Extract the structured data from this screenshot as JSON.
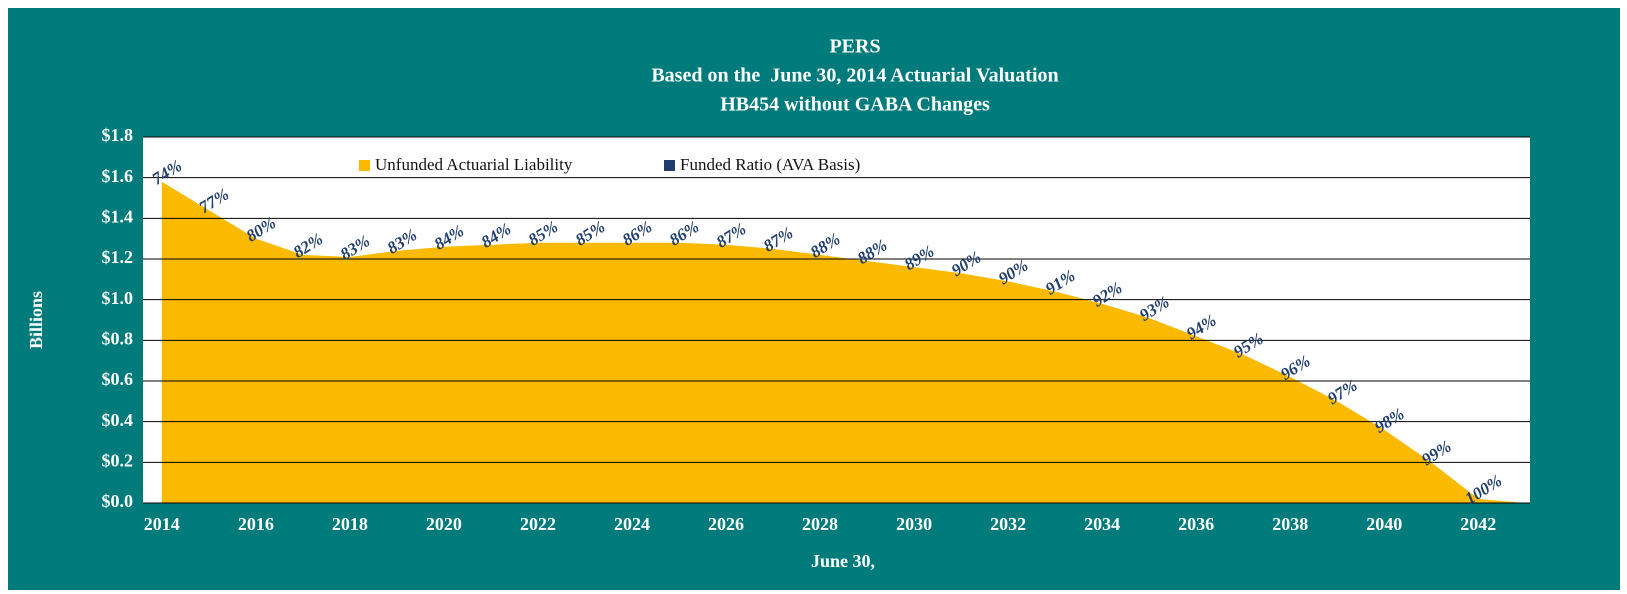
{
  "chart_data": {
    "type": "area",
    "title": "PERS",
    "subtitle": [
      "Based on the  June 30, 2014 Actuarial Valuation",
      "HB454 without GABA Changes"
    ],
    "x_label": "June 30,",
    "y_label": "Billions",
    "x": [
      2014,
      2015,
      2016,
      2017,
      2018,
      2019,
      2020,
      2021,
      2022,
      2023,
      2024,
      2025,
      2026,
      2027,
      2028,
      2029,
      2030,
      2031,
      2032,
      2033,
      2034,
      2035,
      2036,
      2037,
      2038,
      2039,
      2040,
      2041,
      2042,
      2043
    ],
    "series": [
      {
        "name": "Unfunded Actuarial Liability",
        "color": "#fbb900",
        "values": [
          1.58,
          1.44,
          1.3,
          1.22,
          1.21,
          1.24,
          1.26,
          1.27,
          1.28,
          1.28,
          1.28,
          1.28,
          1.27,
          1.25,
          1.22,
          1.19,
          1.16,
          1.13,
          1.09,
          1.04,
          0.98,
          0.91,
          0.82,
          0.73,
          0.62,
          0.5,
          0.36,
          0.2,
          0.02,
          0.0
        ]
      },
      {
        "name": "Funded Ratio (AVA Basis)",
        "color": "#1f3d6e",
        "values": [
          74,
          77,
          80,
          82,
          83,
          83,
          84,
          84,
          85,
          85,
          86,
          86,
          87,
          87,
          88,
          88,
          89,
          90,
          90,
          91,
          92,
          93,
          94,
          95,
          96,
          97,
          98,
          99,
          100,
          null
        ],
        "value_labels": [
          "74%",
          "77%",
          "80%",
          "82%",
          "83%",
          "83%",
          "84%",
          "84%",
          "85%",
          "85%",
          "86%",
          "86%",
          "87%",
          "87%",
          "88%",
          "88%",
          "89%",
          "90%",
          "90%",
          "91%",
          "92%",
          "93%",
          "94%",
          "95%",
          "96%",
          "97%",
          "98%",
          "99%",
          "100%",
          null
        ]
      }
    ],
    "xlim": [
      2013.6,
      2043.1
    ],
    "xticks": [
      2014,
      2016,
      2018,
      2020,
      2022,
      2024,
      2026,
      2028,
      2030,
      2032,
      2034,
      2036,
      2038,
      2040,
      2042
    ],
    "ylim": [
      0,
      1.8
    ],
    "yticks": [
      {
        "value": 0,
        "label": "$0.0"
      },
      {
        "value": 0.2,
        "label": "$0.2"
      },
      {
        "value": 0.4,
        "label": "$0.4"
      },
      {
        "value": 0.6,
        "label": "$0.6"
      },
      {
        "value": 0.8,
        "label": "$0.8"
      },
      {
        "value": 1.0,
        "label": "$1.0"
      },
      {
        "value": 1.2,
        "label": "$1.2"
      },
      {
        "value": 1.4,
        "label": "$1.4"
      },
      {
        "value": 1.6,
        "label": "$1.6"
      },
      {
        "value": 1.8,
        "label": "$1.8"
      }
    ],
    "grid": true,
    "legend": "top"
  }
}
